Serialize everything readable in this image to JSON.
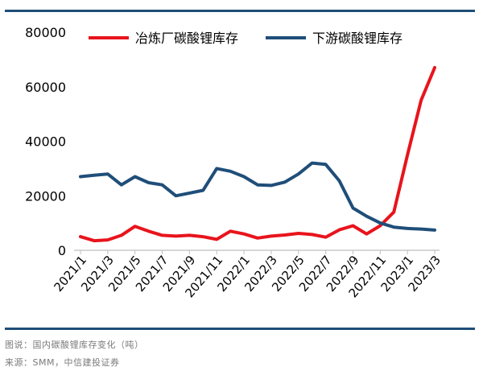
{
  "chart_data": {
    "type": "line",
    "title": "",
    "xlabel": "",
    "ylabel": "",
    "ylim": [
      0,
      80000
    ],
    "yticks": [
      0,
      20000,
      40000,
      60000,
      80000
    ],
    "x": [
      "2021/1",
      "2021/2",
      "2021/3",
      "2021/4",
      "2021/5",
      "2021/6",
      "2021/7",
      "2021/8",
      "2021/9",
      "2021/10",
      "2021/11",
      "2021/12",
      "2022/1",
      "2022/2",
      "2022/3",
      "2022/4",
      "2022/5",
      "2022/6",
      "2022/7",
      "2022/8",
      "2022/9",
      "2022/10",
      "2022/11",
      "2022/12",
      "2023/1",
      "2023/2",
      "2023/3"
    ],
    "xtick_labels": [
      "2021/1",
      "2021/3",
      "2021/5",
      "2021/7",
      "2021/9",
      "2021/11",
      "2022/1",
      "2022/3",
      "2022/5",
      "2022/7",
      "2022/9",
      "2022/11",
      "2023/1",
      "2023/3"
    ],
    "legend_position": "top",
    "grid": false,
    "series": [
      {
        "name": "冶炼厂碳酸锂库存",
        "color": "#e8141c",
        "values": [
          5000,
          3500,
          3800,
          5500,
          8800,
          7000,
          5500,
          5200,
          5500,
          5000,
          4000,
          7000,
          6000,
          4500,
          5200,
          5600,
          6200,
          5800,
          4800,
          7500,
          9000,
          6000,
          9000,
          14000,
          35000,
          55000,
          67000
        ]
      },
      {
        "name": "下游碳酸锂库存",
        "color": "#1f4e79",
        "values": [
          27000,
          27500,
          28000,
          24000,
          27000,
          24800,
          24000,
          20000,
          21000,
          22000,
          30000,
          29000,
          27000,
          24000,
          23800,
          25000,
          28000,
          32000,
          31500,
          25500,
          15500,
          12500,
          10000,
          8500,
          8000,
          7800,
          7400
        ]
      }
    ]
  },
  "captions": {
    "figure": "图说：国内碳酸锂库存变化（吨）",
    "source": "来源：SMM，中信建投证券"
  }
}
